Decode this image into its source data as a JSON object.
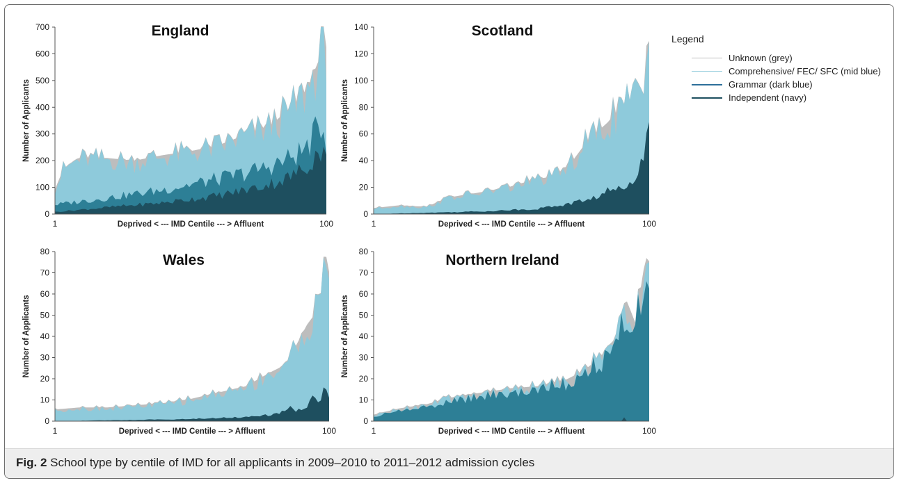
{
  "legend": {
    "title": "Legend",
    "items": [
      {
        "key": "unknown",
        "label": "Unknown (grey)",
        "color": "#bdbdbd"
      },
      {
        "key": "comprehensive",
        "label": "Comprehensive/ FEC/ SFC (mid blue)",
        "color": "#8ecadb"
      },
      {
        "key": "grammar",
        "label": "Grammar (dark blue)",
        "color": "#2d7f96"
      },
      {
        "key": "independent",
        "label": "Independent (navy)",
        "color": "#1e4f5f"
      }
    ]
  },
  "caption": {
    "label": "Fig. 2",
    "text": " School type by centile of IMD for all applicants in 2009–2010 to 2011–2012 admission cycles"
  },
  "chart_data": [
    {
      "type": "area",
      "stacked": true,
      "title": "England",
      "xlabel": "Deprived < --- IMD Centile --- > Affluent",
      "ylabel": "Number of Applicants",
      "xlim": [
        1,
        100
      ],
      "ylim": [
        0,
        700
      ],
      "yticks": [
        0,
        100,
        200,
        300,
        400,
        500,
        600,
        700
      ],
      "xtick_labels": [
        "1",
        "100"
      ],
      "keypoints": {
        "independent": [
          [
            1,
            8
          ],
          [
            20,
            25
          ],
          [
            40,
            42
          ],
          [
            60,
            68
          ],
          [
            75,
            100
          ],
          [
            85,
            130
          ],
          [
            92,
            170
          ],
          [
            97,
            230
          ],
          [
            100,
            250
          ]
        ],
        "grammar": [
          [
            1,
            35
          ],
          [
            20,
            60
          ],
          [
            40,
            90
          ],
          [
            55,
            120
          ],
          [
            65,
            140
          ],
          [
            75,
            165
          ],
          [
            85,
            200
          ],
          [
            92,
            240
          ],
          [
            96,
            300
          ],
          [
            98,
            340
          ],
          [
            100,
            280
          ]
        ],
        "comprehensive": [
          [
            1,
            90
          ],
          [
            4,
            165
          ],
          [
            10,
            205
          ],
          [
            20,
            205
          ],
          [
            30,
            195
          ],
          [
            40,
            215
          ],
          [
            50,
            230
          ],
          [
            60,
            250
          ],
          [
            70,
            290
          ],
          [
            80,
            330
          ],
          [
            88,
            400
          ],
          [
            93,
            460
          ],
          [
            97,
            560
          ],
          [
            99,
            660
          ],
          [
            100,
            620
          ]
        ],
        "unknown": [
          [
            1,
            92
          ],
          [
            4,
            168
          ],
          [
            10,
            210
          ],
          [
            20,
            210
          ],
          [
            30,
            200
          ],
          [
            40,
            220
          ],
          [
            50,
            235
          ],
          [
            60,
            255
          ],
          [
            70,
            295
          ],
          [
            80,
            335
          ],
          [
            88,
            408
          ],
          [
            93,
            468
          ],
          [
            97,
            570
          ],
          [
            99,
            665
          ],
          [
            100,
            625
          ]
        ]
      },
      "grammar_present": true
    },
    {
      "type": "area",
      "stacked": true,
      "title": "Scotland",
      "xlabel": "Deprived < --- IMD Centile --- > Affluent",
      "ylabel": "Number of Applicants",
      "xlim": [
        1,
        100
      ],
      "ylim": [
        0,
        140
      ],
      "yticks": [
        0,
        20,
        40,
        60,
        80,
        100,
        120,
        140
      ],
      "xtick_labels": [
        "1",
        "100"
      ],
      "keypoints": {
        "independent": [
          [
            1,
            0
          ],
          [
            40,
            2
          ],
          [
            60,
            4
          ],
          [
            72,
            8
          ],
          [
            80,
            12
          ],
          [
            86,
            18
          ],
          [
            90,
            18
          ],
          [
            94,
            28
          ],
          [
            97,
            40
          ],
          [
            100,
            60
          ]
        ],
        "comprehensive": [
          [
            1,
            4
          ],
          [
            10,
            6
          ],
          [
            20,
            5
          ],
          [
            28,
            12
          ],
          [
            40,
            16
          ],
          [
            50,
            20
          ],
          [
            58,
            25
          ],
          [
            66,
            28
          ],
          [
            72,
            38
          ],
          [
            78,
            55
          ],
          [
            85,
            68
          ],
          [
            90,
            80
          ],
          [
            95,
            88
          ],
          [
            98,
            85
          ],
          [
            99,
            125
          ],
          [
            100,
            128
          ]
        ],
        "unknown": [
          [
            1,
            4.5
          ],
          [
            10,
            6.5
          ],
          [
            20,
            5.5
          ],
          [
            28,
            12.5
          ],
          [
            40,
            16.5
          ],
          [
            50,
            20.5
          ],
          [
            58,
            25.5
          ],
          [
            66,
            28.5
          ],
          [
            72,
            38.5
          ],
          [
            78,
            55.5
          ],
          [
            85,
            68.5
          ],
          [
            90,
            80.5
          ],
          [
            95,
            88.5
          ],
          [
            98,
            85.5
          ],
          [
            99,
            126
          ],
          [
            100,
            129
          ]
        ]
      },
      "grammar_present": false
    },
    {
      "type": "area",
      "stacked": true,
      "title": "Wales",
      "xlabel": "Deprived < --- IMD Centile --- > Affluent",
      "ylabel": "Number of Applicants",
      "xlim": [
        1,
        100
      ],
      "ylim": [
        0,
        80
      ],
      "yticks": [
        0,
        10,
        20,
        30,
        40,
        50,
        60,
        70,
        80
      ],
      "xtick_labels": [
        "1",
        "100"
      ],
      "keypoints": {
        "independent": [
          [
            1,
            0
          ],
          [
            50,
            1
          ],
          [
            70,
            2
          ],
          [
            80,
            3
          ],
          [
            86,
            6
          ],
          [
            90,
            5
          ],
          [
            94,
            10
          ],
          [
            97,
            10
          ],
          [
            99,
            18
          ],
          [
            100,
            14
          ]
        ],
        "comprehensive": [
          [
            1,
            5
          ],
          [
            10,
            6
          ],
          [
            20,
            6
          ],
          [
            30,
            7
          ],
          [
            40,
            8
          ],
          [
            50,
            10
          ],
          [
            60,
            13
          ],
          [
            70,
            16
          ],
          [
            78,
            22
          ],
          [
            84,
            26
          ],
          [
            88,
            35
          ],
          [
            92,
            45
          ],
          [
            96,
            52
          ],
          [
            98,
            65
          ],
          [
            99,
            77
          ],
          [
            100,
            70
          ]
        ],
        "unknown": [
          [
            1,
            5.5
          ],
          [
            10,
            6.5
          ],
          [
            20,
            6.5
          ],
          [
            30,
            7.5
          ],
          [
            40,
            8.5
          ],
          [
            50,
            10.5
          ],
          [
            60,
            13.5
          ],
          [
            70,
            16.5
          ],
          [
            78,
            22.5
          ],
          [
            84,
            26.5
          ],
          [
            88,
            35.5
          ],
          [
            92,
            45.5
          ],
          [
            96,
            52.5
          ],
          [
            98,
            65.5
          ],
          [
            99,
            77.5
          ],
          [
            100,
            70.5
          ]
        ]
      },
      "grammar_present": false
    },
    {
      "type": "area",
      "stacked": true,
      "title": "Northern Ireland",
      "xlabel": "Deprived < --- IMD Centile --- > Affluent",
      "ylabel": "Number of Applicants",
      "xlim": [
        1,
        100
      ],
      "ylim": [
        0,
        80
      ],
      "yticks": [
        0,
        10,
        20,
        30,
        40,
        50,
        60,
        70,
        80
      ],
      "xtick_labels": [
        "1",
        "100"
      ],
      "keypoints": {
        "independent": [
          [
            1,
            0
          ],
          [
            90,
            0
          ],
          [
            91,
            2
          ],
          [
            92,
            0
          ],
          [
            100,
            0
          ]
        ],
        "grammar": [
          [
            1,
            2
          ],
          [
            10,
            5
          ],
          [
            20,
            7
          ],
          [
            30,
            10
          ],
          [
            40,
            12
          ],
          [
            50,
            14
          ],
          [
            60,
            15
          ],
          [
            70,
            18
          ],
          [
            76,
            22
          ],
          [
            82,
            28
          ],
          [
            88,
            38
          ],
          [
            92,
            55
          ],
          [
            95,
            45
          ],
          [
            98,
            70
          ],
          [
            99,
            76
          ],
          [
            100,
            65
          ]
        ],
        "comprehensive": [
          [
            1,
            2.5
          ],
          [
            10,
            5.5
          ],
          [
            20,
            7.5
          ],
          [
            30,
            11
          ],
          [
            40,
            13
          ],
          [
            50,
            15
          ],
          [
            60,
            16
          ],
          [
            70,
            19
          ],
          [
            76,
            23
          ],
          [
            82,
            29
          ],
          [
            88,
            39
          ],
          [
            92,
            56
          ],
          [
            95,
            46
          ],
          [
            98,
            71
          ],
          [
            99,
            76.5
          ],
          [
            100,
            65.5
          ]
        ],
        "unknown": [
          [
            1,
            3
          ],
          [
            10,
            6
          ],
          [
            20,
            8
          ],
          [
            30,
            11.5
          ],
          [
            40,
            13.5
          ],
          [
            50,
            15.5
          ],
          [
            60,
            16.5
          ],
          [
            70,
            19.5
          ],
          [
            76,
            23.5
          ],
          [
            82,
            29.5
          ],
          [
            88,
            39.5
          ],
          [
            92,
            56.5
          ],
          [
            95,
            46.5
          ],
          [
            98,
            71.5
          ],
          [
            99,
            77
          ],
          [
            100,
            66
          ]
        ]
      },
      "grammar_present": true
    }
  ]
}
